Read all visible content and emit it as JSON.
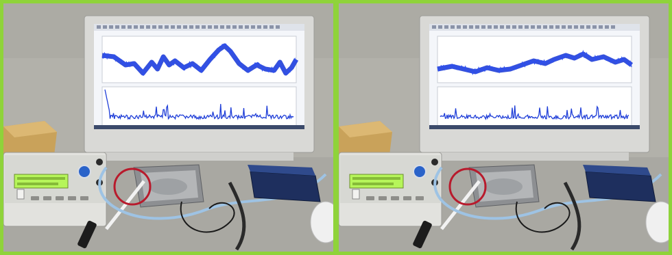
{
  "image": {
    "description_colors": {
      "border": "#8fd33a",
      "wall": "#b2b1aa",
      "desk": "#a9a8a2",
      "monitor_frame": "#d9d9d6",
      "screen_bg": "#f4f6fa",
      "signal": "#1f3ed8",
      "lcd": "#b6f55a",
      "highlight_circle": "#b81a2c"
    },
    "panels": [
      {
        "id": "left",
        "signal_top": [
          [
            0,
            38
          ],
          [
            20,
            40
          ],
          [
            40,
            52
          ],
          [
            55,
            50
          ],
          [
            70,
            64
          ],
          [
            85,
            48
          ],
          [
            95,
            58
          ],
          [
            105,
            40
          ],
          [
            115,
            52
          ],
          [
            125,
            46
          ],
          [
            140,
            56
          ],
          [
            155,
            50
          ],
          [
            170,
            60
          ],
          [
            185,
            44
          ],
          [
            200,
            30
          ],
          [
            210,
            24
          ],
          [
            220,
            32
          ],
          [
            235,
            50
          ],
          [
            250,
            60
          ],
          [
            265,
            52
          ],
          [
            280,
            58
          ],
          [
            295,
            60
          ],
          [
            305,
            48
          ],
          [
            315,
            64
          ],
          [
            325,
            56
          ],
          [
            333,
            44
          ]
        ],
        "signal_bottom_spike": true
      },
      {
        "id": "right",
        "signal_top": [
          [
            0,
            58
          ],
          [
            25,
            54
          ],
          [
            45,
            58
          ],
          [
            65,
            62
          ],
          [
            85,
            56
          ],
          [
            105,
            60
          ],
          [
            125,
            58
          ],
          [
            145,
            52
          ],
          [
            165,
            46
          ],
          [
            185,
            50
          ],
          [
            200,
            44
          ],
          [
            220,
            38
          ],
          [
            235,
            42
          ],
          [
            250,
            36
          ],
          [
            265,
            44
          ],
          [
            285,
            40
          ],
          [
            305,
            48
          ],
          [
            320,
            44
          ],
          [
            333,
            52
          ]
        ],
        "signal_bottom_spike": false
      }
    ]
  }
}
